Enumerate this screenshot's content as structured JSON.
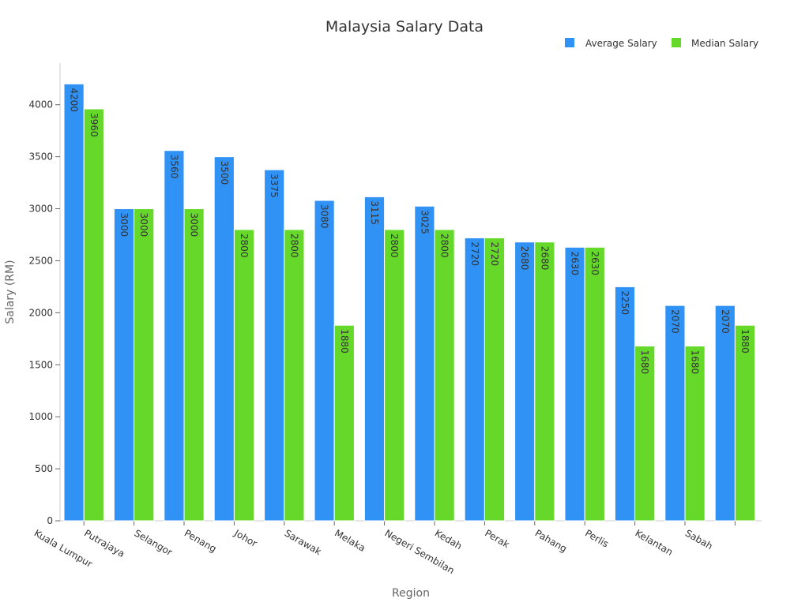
{
  "chart_data": {
    "type": "bar",
    "title": "Malaysia Salary Data",
    "xlabel": "Region",
    "ylabel": "Salary (RM)",
    "ylim": [
      0,
      4400
    ],
    "yticks": [
      0,
      500,
      1000,
      1500,
      2000,
      2500,
      3000,
      3500,
      4000
    ],
    "legend_position": "top-right",
    "grid": false,
    "categories": [
      "Kuala Lumpur",
      "Putrajaya",
      "Selangor",
      "Penang",
      "Johor",
      "Sarawak",
      "Melaka",
      "Negeri Sembilan",
      "Kedah",
      "Perak",
      "Pahang",
      "Perlis",
      "Kelantan",
      "Sabah"
    ],
    "series": [
      {
        "name": "Average Salary",
        "color": "#3092f5",
        "values": [
          4200,
          3000,
          3560,
          3500,
          3375,
          3080,
          3115,
          3025,
          2720,
          2680,
          2630,
          2250,
          2070,
          2070
        ]
      },
      {
        "name": "Median Salary",
        "color": "#65d82a",
        "values": [
          3960,
          3000,
          3000,
          2800,
          2800,
          1880,
          2800,
          2800,
          2720,
          2680,
          2630,
          1680,
          1680,
          1880
        ]
      }
    ]
  }
}
